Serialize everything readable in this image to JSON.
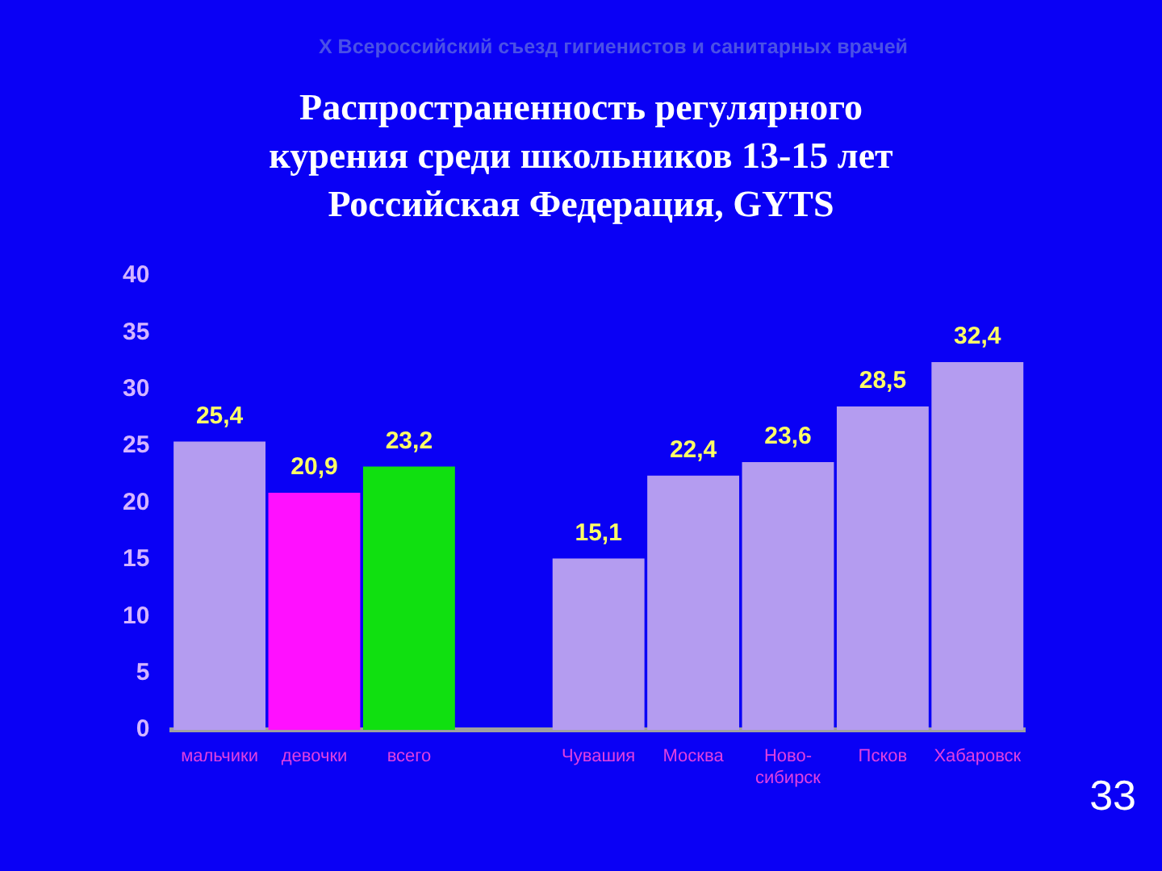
{
  "chart_data": {
    "type": "bar",
    "subtitle": "X Всероссийский съезд гигиенистов и санитарных врачей",
    "title": "Распространенность регулярного\nкурения среди школьников 13-15 лет\nРоссийская Федерация, GYTS",
    "categories": [
      "мальчики",
      "девочки",
      "всего",
      null,
      "Чувашия",
      "Москва",
      "Ново-\nсибирск",
      "Псков",
      "Хабаровск"
    ],
    "values": [
      25.4,
      20.9,
      23.2,
      null,
      15.1,
      22.4,
      23.6,
      28.5,
      32.4
    ],
    "colors": [
      "#b49cf0",
      "#ff10ff",
      "#10e010",
      "#b49cf0",
      "#b49cf0",
      "#b49cf0",
      "#b49cf0",
      "#b49cf0",
      "#b49cf0"
    ],
    "value_labels": [
      "25,4",
      "20,9",
      "23,2",
      null,
      "15,1",
      "22,4",
      "23,6",
      "28,5",
      "32,4"
    ],
    "ylim": [
      0,
      40
    ],
    "yticks": [
      0,
      5,
      10,
      15,
      20,
      25,
      30,
      35,
      40
    ],
    "grid": false,
    "legend": false,
    "annotations": [
      "33"
    ]
  }
}
